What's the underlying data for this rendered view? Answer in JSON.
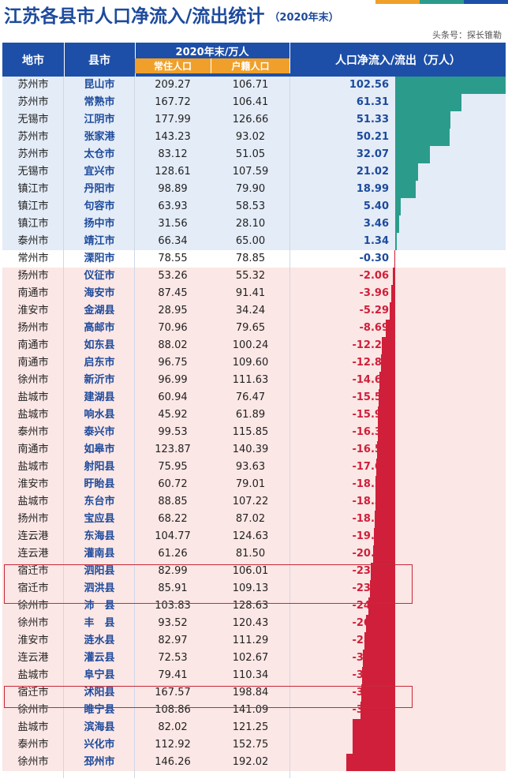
{
  "title": "江苏各县市人口净流入/流出统计",
  "title_year": "（2020年末）",
  "source": "头条号：探长锥勒",
  "header": {
    "city": "地市",
    "county": "县市",
    "group": "2020年末/万人",
    "resident": "常住人口",
    "registered": "户籍人口",
    "net": "人口净流入/流出（万人）"
  },
  "colors": {
    "header": "#1d4fa8",
    "subheader": "#f0a02a",
    "positive": "#2b9c8c",
    "negative": "#d01f3a",
    "title": "#1d4a9c"
  },
  "chart_data": {
    "type": "bar",
    "orientation": "horizontal",
    "title": "江苏各县市人口净流入/流出统计",
    "xlabel": "人口净流入/流出（万人）",
    "xlim": [
      -45.76,
      102.56
    ],
    "rows": [
      {
        "city": "苏州市",
        "county": "昆山市",
        "resident": "209.27",
        "registered": "106.71",
        "net": 102.56
      },
      {
        "city": "苏州市",
        "county": "常熟市",
        "resident": "167.72",
        "registered": "106.41",
        "net": 61.31
      },
      {
        "city": "无锡市",
        "county": "江阴市",
        "resident": "177.99",
        "registered": "126.66",
        "net": 51.33
      },
      {
        "city": "苏州市",
        "county": "张家港",
        "resident": "143.23",
        "registered": "93.02",
        "net": 50.21
      },
      {
        "city": "苏州市",
        "county": "太仓市",
        "resident": "83.12",
        "registered": "51.05",
        "net": 32.07
      },
      {
        "city": "无锡市",
        "county": "宜兴市",
        "resident": "128.61",
        "registered": "107.59",
        "net": 21.02
      },
      {
        "city": "镇江市",
        "county": "丹阳市",
        "resident": "98.89",
        "registered": "79.90",
        "net": 18.99
      },
      {
        "city": "镇江市",
        "county": "句容市",
        "resident": "63.93",
        "registered": "58.53",
        "net": 5.4
      },
      {
        "city": "镇江市",
        "county": "扬中市",
        "resident": "31.56",
        "registered": "28.10",
        "net": 3.46
      },
      {
        "city": "泰州市",
        "county": "靖江市",
        "resident": "66.34",
        "registered": "65.00",
        "net": 1.34
      },
      {
        "city": "常州市",
        "county": "溧阳市",
        "resident": "78.55",
        "registered": "78.85",
        "net": -0.3
      },
      {
        "city": "扬州市",
        "county": "仪征市",
        "resident": "53.26",
        "registered": "55.32",
        "net": -2.06
      },
      {
        "city": "南通市",
        "county": "海安市",
        "resident": "87.45",
        "registered": "91.41",
        "net": -3.96
      },
      {
        "city": "淮安市",
        "county": "金湖县",
        "resident": "28.95",
        "registered": "34.24",
        "net": -5.29
      },
      {
        "city": "扬州市",
        "county": "高邮市",
        "resident": "70.96",
        "registered": "79.65",
        "net": -8.69
      },
      {
        "city": "南通市",
        "county": "如东县",
        "resident": "88.02",
        "registered": "100.24",
        "net": -12.22
      },
      {
        "city": "南通市",
        "county": "启东市",
        "resident": "96.75",
        "registered": "109.60",
        "net": -12.85
      },
      {
        "city": "徐州市",
        "county": "新沂市",
        "resident": "96.99",
        "registered": "111.63",
        "net": -14.64
      },
      {
        "city": "盐城市",
        "county": "建湖县",
        "resident": "60.94",
        "registered": "76.47",
        "net": -15.53
      },
      {
        "city": "盐城市",
        "county": "响水县",
        "resident": "45.92",
        "registered": "61.89",
        "net": -15.97
      },
      {
        "city": "泰州市",
        "county": "泰兴市",
        "resident": "99.53",
        "registered": "115.85",
        "net": -16.32
      },
      {
        "city": "南通市",
        "county": "如皋市",
        "resident": "123.87",
        "registered": "140.39",
        "net": -16.52
      },
      {
        "city": "盐城市",
        "county": "射阳县",
        "resident": "75.95",
        "registered": "93.63",
        "net": -17.68
      },
      {
        "city": "淮安市",
        "county": "盱眙县",
        "resident": "60.72",
        "registered": "79.01",
        "net": -18.29
      },
      {
        "city": "盐城市",
        "county": "东台市",
        "resident": "88.85",
        "registered": "107.22",
        "net": -18.37
      },
      {
        "city": "扬州市",
        "county": "宝应县",
        "resident": "68.22",
        "registered": "87.02",
        "net": -18.8
      },
      {
        "city": "连云港",
        "county": "东海县",
        "resident": "104.77",
        "registered": "124.63",
        "net": -19.86
      },
      {
        "city": "连云港",
        "county": "灌南县",
        "resident": "61.26",
        "registered": "81.50",
        "net": -20.24
      },
      {
        "city": "宿迁市",
        "county": "泗阳县",
        "resident": "82.99",
        "registered": "106.01",
        "net": -23.02
      },
      {
        "city": "宿迁市",
        "county": "泗洪县",
        "resident": "85.91",
        "registered": "109.13",
        "net": -23.22
      },
      {
        "city": "徐州市",
        "county": "沛　县",
        "resident": "103.83",
        "registered": "128.63",
        "net": -24.8
      },
      {
        "city": "徐州市",
        "county": "丰　县",
        "resident": "93.52",
        "registered": "120.43",
        "net": -26.91
      },
      {
        "city": "淮安市",
        "county": "涟水县",
        "resident": "82.97",
        "registered": "111.29",
        "net": -28.32
      },
      {
        "city": "连云港",
        "county": "灌云县",
        "resident": "72.53",
        "registered": "102.67",
        "net": -30.14
      },
      {
        "city": "盐城市",
        "county": "阜宁县",
        "resident": "79.41",
        "registered": "110.34",
        "net": -30.93
      },
      {
        "city": "宿迁市",
        "county": "沭阳县",
        "resident": "167.57",
        "registered": "198.84",
        "net": -31.27
      },
      {
        "city": "徐州市",
        "county": "睢宁县",
        "resident": "108.86",
        "registered": "141.09",
        "net": -32.23
      },
      {
        "city": "盐城市",
        "county": "滨海县",
        "resident": "82.02",
        "registered": "121.25",
        "net": -39.23
      },
      {
        "city": "泰州市",
        "county": "兴化市",
        "resident": "112.92",
        "registered": "152.75",
        "net": -39.83
      },
      {
        "city": "徐州市",
        "county": "邳州市",
        "resident": "146.26",
        "registered": "192.02",
        "net": -45.76
      }
    ]
  }
}
